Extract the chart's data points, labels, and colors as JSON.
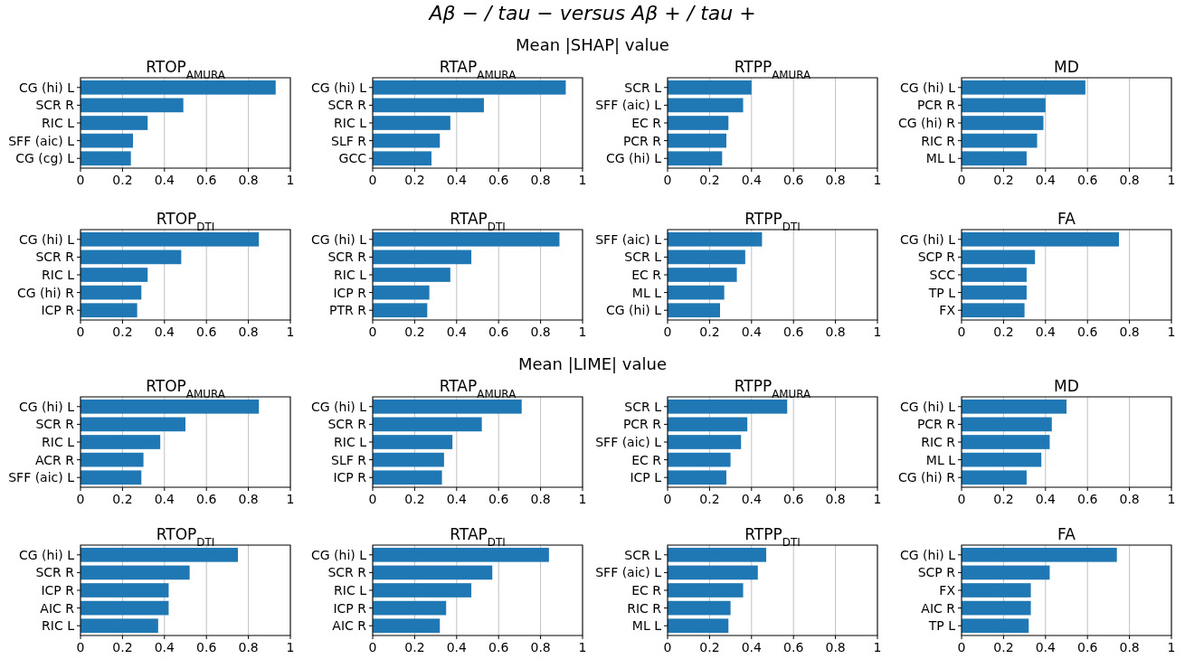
{
  "chart_data": [
    {
      "type": "bar",
      "orientation": "horizontal",
      "title": "RTOP$_{AMURA}$",
      "annotations": [
        "Aβ − / tau −   versus  Aβ + / tau +",
        "Mean |SHAP| value"
      ],
      "categories": [
        "CG (hi) L",
        "SCR R",
        "RIC L",
        "SFF (aic) L",
        "CG (cg) L"
      ],
      "values": [
        0.93,
        0.49,
        0.32,
        0.25,
        0.24
      ],
      "color": "#1f77b4",
      "xlim": [
        0,
        1
      ],
      "xticks": [
        0,
        0.2,
        0.4,
        0.6,
        0.8,
        1
      ],
      "grid": "x"
    },
    {
      "type": "bar",
      "orientation": "horizontal",
      "title": "RTAP$_{AMURA}$",
      "categories": [
        "CG (hi) L",
        "SCR R",
        "RIC L",
        "SLF R",
        "GCC"
      ],
      "values": [
        0.92,
        0.53,
        0.37,
        0.32,
        0.28
      ],
      "color": "#1f77b4",
      "xlim": [
        0,
        1
      ],
      "xticks": [
        0,
        0.2,
        0.4,
        0.6,
        0.8,
        1
      ],
      "grid": "x"
    },
    {
      "type": "bar",
      "orientation": "horizontal",
      "title": "RTPP$_{AMURA}$",
      "categories": [
        "SCR L",
        "SFF (aic) L",
        "EC R",
        "PCR R",
        "CG (hi) L"
      ],
      "values": [
        0.4,
        0.36,
        0.29,
        0.28,
        0.26
      ],
      "color": "#1f77b4",
      "xlim": [
        0,
        1
      ],
      "xticks": [
        0,
        0.2,
        0.4,
        0.6,
        0.8,
        1
      ],
      "grid": "x"
    },
    {
      "type": "bar",
      "orientation": "horizontal",
      "title": "MD",
      "categories": [
        "CG (hi) L",
        "PCR R",
        "CG (hi) R",
        "RIC R",
        "ML L"
      ],
      "values": [
        0.59,
        0.4,
        0.39,
        0.36,
        0.31
      ],
      "color": "#1f77b4",
      "xlim": [
        0,
        1
      ],
      "xticks": [
        0,
        0.2,
        0.4,
        0.6,
        0.8,
        1
      ],
      "grid": "x"
    },
    {
      "type": "bar",
      "orientation": "horizontal",
      "title": "RTOP$_{DTI}$",
      "categories": [
        "CG (hi) L",
        "SCR R",
        "RIC L",
        "CG (hi) R",
        "ICP R"
      ],
      "values": [
        0.85,
        0.48,
        0.32,
        0.29,
        0.27
      ],
      "color": "#1f77b4",
      "xlim": [
        0,
        1
      ],
      "xticks": [
        0,
        0.2,
        0.4,
        0.6,
        0.8,
        1
      ],
      "grid": "x"
    },
    {
      "type": "bar",
      "orientation": "horizontal",
      "title": "RTAP$_{DTI}$",
      "categories": [
        "CG (hi) L",
        "SCR R",
        "RIC L",
        "ICP R",
        "PTR R"
      ],
      "values": [
        0.89,
        0.47,
        0.37,
        0.27,
        0.26
      ],
      "color": "#1f77b4",
      "xlim": [
        0,
        1
      ],
      "xticks": [
        0,
        0.2,
        0.4,
        0.6,
        0.8,
        1
      ],
      "grid": "x"
    },
    {
      "type": "bar",
      "orientation": "horizontal",
      "title": "RTPP$_{DTI}$",
      "categories": [
        "SFF (aic) L",
        "SCR L",
        "EC R",
        "ML L",
        "CG (hi) L"
      ],
      "values": [
        0.45,
        0.37,
        0.33,
        0.27,
        0.25
      ],
      "color": "#1f77b4",
      "xlim": [
        0,
        1
      ],
      "xticks": [
        0,
        0.2,
        0.4,
        0.6,
        0.8,
        1
      ],
      "grid": "x"
    },
    {
      "type": "bar",
      "orientation": "horizontal",
      "title": "FA",
      "categories": [
        "CG (hi) L",
        "SCP R",
        "SCC",
        "TP L",
        "FX"
      ],
      "values": [
        0.75,
        0.35,
        0.31,
        0.31,
        0.3
      ],
      "color": "#1f77b4",
      "xlim": [
        0,
        1
      ],
      "xticks": [
        0,
        0.2,
        0.4,
        0.6,
        0.8,
        1
      ],
      "grid": "x"
    },
    {
      "type": "bar",
      "orientation": "horizontal",
      "title": "RTOP$_{AMURA}$",
      "annotations": [
        "Mean |LIME| value"
      ],
      "categories": [
        "CG (hi) L",
        "SCR R",
        "RIC L",
        "ACR R",
        "SFF (aic) L"
      ],
      "values": [
        0.85,
        0.5,
        0.38,
        0.3,
        0.29
      ],
      "color": "#1f77b4",
      "xlim": [
        0,
        1
      ],
      "xticks": [
        0,
        0.2,
        0.4,
        0.6,
        0.8,
        1
      ],
      "grid": "x"
    },
    {
      "type": "bar",
      "orientation": "horizontal",
      "title": "RTAP$_{AMURA}$",
      "categories": [
        "CG (hi) L",
        "SCR R",
        "RIC L",
        "SLF R",
        "ICP R"
      ],
      "values": [
        0.71,
        0.52,
        0.38,
        0.34,
        0.33
      ],
      "color": "#1f77b4",
      "xlim": [
        0,
        1
      ],
      "xticks": [
        0,
        0.2,
        0.4,
        0.6,
        0.8,
        1
      ],
      "grid": "x"
    },
    {
      "type": "bar",
      "orientation": "horizontal",
      "title": "RTPP$_{AMURA}$",
      "categories": [
        "SCR L",
        "PCR R",
        "SFF (aic) L",
        "EC R",
        "ICP L"
      ],
      "values": [
        0.57,
        0.38,
        0.35,
        0.3,
        0.28
      ],
      "color": "#1f77b4",
      "xlim": [
        0,
        1
      ],
      "xticks": [
        0,
        0.2,
        0.4,
        0.6,
        0.8,
        1
      ],
      "grid": "x"
    },
    {
      "type": "bar",
      "orientation": "horizontal",
      "title": "MD",
      "categories": [
        "CG (hi) L",
        "PCR R",
        "RIC R",
        "ML L",
        "CG (hi) R"
      ],
      "values": [
        0.5,
        0.43,
        0.42,
        0.38,
        0.31
      ],
      "color": "#1f77b4",
      "xlim": [
        0,
        1
      ],
      "xticks": [
        0,
        0.2,
        0.4,
        0.6,
        0.8,
        1
      ],
      "grid": "x"
    },
    {
      "type": "bar",
      "orientation": "horizontal",
      "title": "RTOP$_{DTI}$",
      "categories": [
        "CG (hi) L",
        "SCR R",
        "ICP R",
        "AIC R",
        "RIC L"
      ],
      "values": [
        0.75,
        0.52,
        0.42,
        0.42,
        0.37
      ],
      "color": "#1f77b4",
      "xlim": [
        0,
        1
      ],
      "xticks": [
        0,
        0.2,
        0.4,
        0.6,
        0.8,
        1
      ],
      "grid": "x"
    },
    {
      "type": "bar",
      "orientation": "horizontal",
      "title": "RTAP$_{DTI}$",
      "categories": [
        "CG (hi) L",
        "SCR R",
        "RIC L",
        "ICP R",
        "AIC R"
      ],
      "values": [
        0.84,
        0.57,
        0.47,
        0.35,
        0.32
      ],
      "color": "#1f77b4",
      "xlim": [
        0,
        1
      ],
      "xticks": [
        0,
        0.2,
        0.4,
        0.6,
        0.8,
        1
      ],
      "grid": "x"
    },
    {
      "type": "bar",
      "orientation": "horizontal",
      "title": "RTPP$_{DTI}$",
      "categories": [
        "SCR L",
        "SFF (aic) L",
        "EC R",
        "RIC R",
        "ML L"
      ],
      "values": [
        0.47,
        0.43,
        0.36,
        0.3,
        0.29
      ],
      "color": "#1f77b4",
      "xlim": [
        0,
        1
      ],
      "xticks": [
        0,
        0.2,
        0.4,
        0.6,
        0.8,
        1
      ],
      "grid": "x"
    },
    {
      "type": "bar",
      "orientation": "horizontal",
      "title": "FA",
      "categories": [
        "CG (hi) L",
        "SCP R",
        "FX",
        "AIC R",
        "TP L"
      ],
      "values": [
        0.74,
        0.42,
        0.33,
        0.33,
        0.32
      ],
      "color": "#1f77b4",
      "xlim": [
        0,
        1
      ],
      "xticks": [
        0,
        0.2,
        0.4,
        0.6,
        0.8,
        1
      ],
      "grid": "x"
    }
  ]
}
